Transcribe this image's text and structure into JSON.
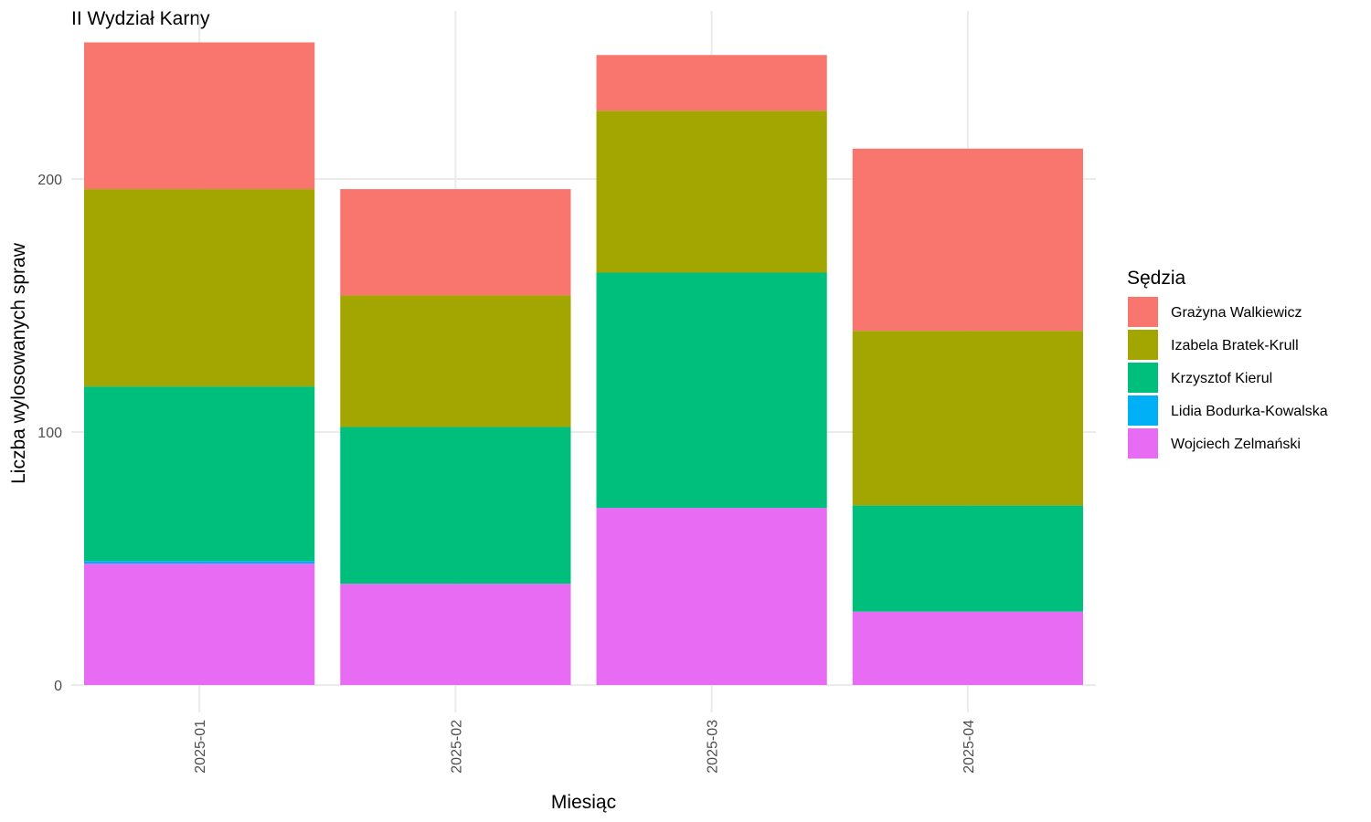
{
  "chart_data": {
    "type": "bar",
    "stacked": true,
    "title": "II Wydział Karny",
    "xlabel": "Miesiąc",
    "ylabel": "Liczba wylosowanych spraw",
    "ylim": [
      0,
      260
    ],
    "yticks": [
      0,
      100,
      200
    ],
    "grid": true,
    "categories": [
      "2025-01",
      "2025-02",
      "2025-03",
      "2025-04"
    ],
    "legend": {
      "title": "Sędzia",
      "position": "right"
    },
    "series": [
      {
        "name": "Grażyna Walkiewicz",
        "color": "#F8766D",
        "values": [
          58,
          42,
          22,
          72
        ]
      },
      {
        "name": "Izabela Bratek-Krull",
        "color": "#A3A500",
        "values": [
          78,
          52,
          64,
          69
        ]
      },
      {
        "name": "Krzysztof Kierul",
        "color": "#00BF7D",
        "values": [
          69,
          62,
          93,
          42
        ]
      },
      {
        "name": "Lidia Bodurka-Kowalska",
        "color": "#00B0F6",
        "values": [
          1,
          0,
          0,
          0
        ]
      },
      {
        "name": "Wojciech Zelmański",
        "color": "#E76BF3",
        "values": [
          48,
          40,
          70,
          29
        ]
      }
    ]
  }
}
